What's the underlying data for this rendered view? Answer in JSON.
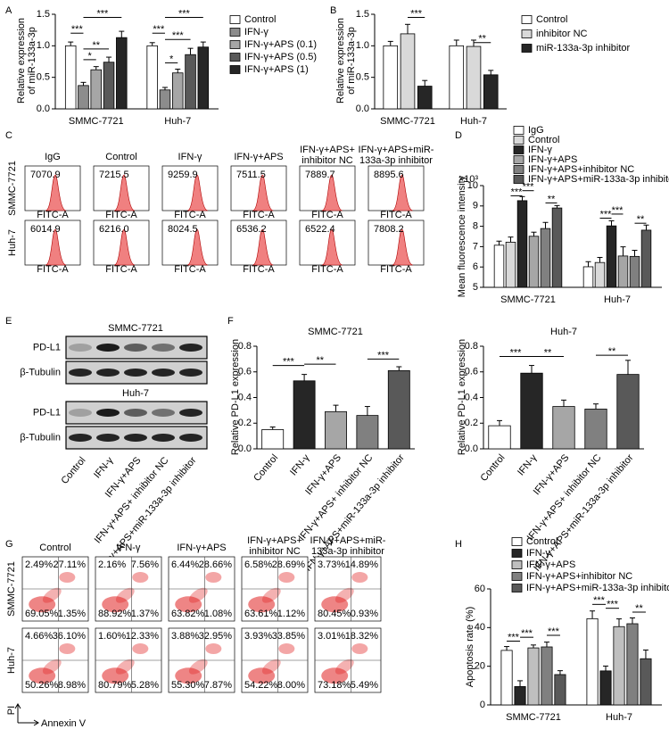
{
  "panels": [
    "A",
    "B",
    "C",
    "D",
    "E",
    "F",
    "G",
    "H"
  ],
  "chart_data": [
    {
      "type": "bar",
      "ylabel": [
        "Relative expression",
        "of miR-133a-3p"
      ],
      "categories": [
        "SMMC-7721",
        "Huh-7"
      ],
      "series": [
        {
          "name": "Control",
          "color": "#ffffff",
          "values": [
            1,
            1
          ],
          "errors": [
            0.06,
            0.05
          ]
        },
        {
          "name": "IFN-γ",
          "color": "#8c8c8c",
          "values": [
            0.37,
            0.3
          ],
          "errors": [
            0.05,
            0.04
          ]
        },
        {
          "name": "IFN-γ+APS (0.1)",
          "color": "#a6a6a6",
          "values": [
            0.62,
            0.57
          ],
          "errors": [
            0.05,
            0.06
          ]
        },
        {
          "name": "IFN-γ+APS (0.5)",
          "color": "#595959",
          "values": [
            0.74,
            0.86
          ],
          "errors": [
            0.08,
            0.1
          ]
        },
        {
          "name": "IFN-γ+APS (1)",
          "color": "#262626",
          "values": [
            1.13,
            0.98
          ],
          "errors": [
            0.1,
            0.08
          ]
        }
      ],
      "ylim": [
        0,
        1.5
      ],
      "yticks": [
        {
          "value": 0,
          "label": "0.0"
        },
        0.5,
        {
          "value": 1,
          "label": "1.0"
        },
        1.5
      ],
      "annotations": [
        "***",
        "*",
        "**",
        "***",
        "***",
        "*",
        "***",
        "***"
      ]
    },
    {
      "type": "bar",
      "ylabel": [
        "Relative expression",
        "of miR-133a-3p"
      ],
      "categories": [
        "SMMC-7721",
        "Huh-7"
      ],
      "series": [
        {
          "name": "Control",
          "color": "#ffffff",
          "values": [
            1,
            1
          ],
          "errors": [
            0.07,
            0.09
          ]
        },
        {
          "name": "inhibitor NC",
          "color": "#d9d9d9",
          "values": [
            1.19,
            0.99
          ],
          "errors": [
            0.15,
            0.1
          ]
        },
        {
          "name": "miR-133a-3p inhibitor",
          "color": "#262626",
          "values": [
            0.36,
            0.54
          ],
          "errors": [
            0.09,
            0.07
          ]
        }
      ],
      "ylim": [
        0,
        1.5
      ],
      "yticks": [
        {
          "value": 0,
          "label": "0.0"
        },
        0.5,
        {
          "value": 1,
          "label": "1.0"
        },
        1.5
      ],
      "annotations": [
        "***",
        "**"
      ]
    },
    {
      "type": "bar",
      "ylabel": "Mean fluorescence intensity",
      "yscale_label": "×10³",
      "categories": [
        "SMMC-7721",
        "Huh-7"
      ],
      "series": [
        {
          "name": "IgG",
          "color": "#ffffff",
          "values": [
            7.07,
            6.01
          ],
          "errors": [
            0.2,
            0.25
          ]
        },
        {
          "name": "Control",
          "color": "#d9d9d9",
          "values": [
            7.22,
            6.22
          ],
          "errors": [
            0.25,
            0.25
          ]
        },
        {
          "name": "IFN-γ",
          "color": "#262626",
          "values": [
            9.26,
            8.02
          ],
          "errors": [
            0.2,
            0.25
          ]
        },
        {
          "name": "IFN-γ+APS",
          "color": "#a6a6a6",
          "values": [
            7.51,
            6.54
          ],
          "errors": [
            0.2,
            0.45
          ]
        },
        {
          "name": "IFN-γ+APS+inhibitor NC",
          "color": "#808080",
          "values": [
            7.89,
            6.52
          ],
          "errors": [
            0.3,
            0.3
          ]
        },
        {
          "name": "IFN-γ+APS+miR-133a-3p inhibitor",
          "color": "#595959",
          "values": [
            8.9,
            7.81
          ],
          "errors": [
            0.12,
            0.25
          ]
        }
      ],
      "ylim": [
        5,
        10
      ],
      "yticks": [
        5,
        6,
        7,
        8,
        9,
        10
      ],
      "annotations": [
        "***",
        "***",
        "**",
        "***",
        "***",
        "**"
      ]
    },
    {
      "type": "bar",
      "title": "SMMC-7721",
      "ylabel": "Relative PD-L1 expression",
      "categories": [
        "Control",
        "IFN-γ",
        "IFN-γ+APS",
        "IFN-γ+APS+ inhibitor NC",
        "IFN-γ+APS+miR-133a-3p inhibitor"
      ],
      "values": [
        0.15,
        0.53,
        0.29,
        0.26,
        0.61
      ],
      "errors": [
        0.02,
        0.05,
        0.05,
        0.07,
        0.03
      ],
      "colors": [
        "#ffffff",
        "#262626",
        "#a6a6a6",
        "#808080",
        "#595959"
      ],
      "ylim": [
        0,
        0.8
      ],
      "yticks": [
        {
          "value": 0,
          "label": "0.0"
        },
        0.2,
        0.4,
        0.6,
        0.8
      ],
      "annotations": [
        "***",
        "**",
        "***"
      ]
    },
    {
      "type": "bar",
      "title": "Huh-7",
      "ylabel": "Relative PD-L1 expression",
      "categories": [
        "Control",
        "IFN-γ",
        "IFN-γ+APS",
        "IFN-γ+APS+ inhibitor NC",
        "IFN-γ+APS+miR-133a-3p inhibitor"
      ],
      "values": [
        0.18,
        0.59,
        0.33,
        0.31,
        0.58
      ],
      "errors": [
        0.04,
        0.06,
        0.05,
        0.04,
        0.11
      ],
      "colors": [
        "#ffffff",
        "#262626",
        "#a6a6a6",
        "#808080",
        "#595959"
      ],
      "ylim": [
        0,
        0.8
      ],
      "yticks": [
        {
          "value": 0,
          "label": "0.0"
        },
        0.2,
        0.4,
        0.6,
        0.8
      ],
      "annotations": [
        "***",
        "**",
        "**"
      ]
    },
    {
      "type": "bar",
      "ylabel": "Apoptosis rate (%)",
      "categories": [
        "SMMC-7721",
        "Huh-7"
      ],
      "series": [
        {
          "name": "Control",
          "color": "#ffffff",
          "values": [
            28.2,
            44.6
          ],
          "errors": [
            2,
            4
          ]
        },
        {
          "name": "IFN-γ",
          "color": "#262626",
          "values": [
            9.5,
            17.6
          ],
          "errors": [
            3,
            2.5
          ]
        },
        {
          "name": "IFN-γ+APS",
          "color": "#bfbfbf",
          "values": [
            29.5,
            40.5
          ],
          "errors": [
            1.5,
            4
          ]
        },
        {
          "name": "IFN-γ+APS+inhibitor NC",
          "color": "#808080",
          "values": [
            30,
            42
          ],
          "errors": [
            2.5,
            3
          ]
        },
        {
          "name": "IFN-γ+APS+miR-133a-3p inhibitor",
          "color": "#595959",
          "values": [
            15.7,
            23.9
          ],
          "errors": [
            2,
            4.5
          ]
        }
      ],
      "ylim": [
        0,
        60
      ],
      "yticks": [
        0,
        20,
        40,
        60
      ],
      "annotations": [
        "***",
        "***",
        "***",
        "***",
        "***",
        "**"
      ]
    }
  ],
  "flow_histograms": {
    "columns": [
      [
        "IgG"
      ],
      [
        "Control"
      ],
      [
        "IFN-γ"
      ],
      [
        "IFN-γ+APS"
      ],
      [
        "IFN-γ+APS+",
        "inhibitor NC"
      ],
      [
        "IFN-γ+APS+miR-",
        "133a-3p inhibitor"
      ]
    ],
    "rows": [
      "SMMC-7721",
      "Huh-7"
    ],
    "values": [
      [
        "7070.9",
        "7215.5",
        "9259.9",
        "7511.5",
        "7889.7",
        "8895.6"
      ],
      [
        "6014.9",
        "6216.0",
        "8024.5",
        "6536.2",
        "6522.4",
        "7808.2"
      ]
    ],
    "axis_label": "FITC-A"
  },
  "western_blot": {
    "blocks": [
      {
        "title": "SMMC-7721",
        "bands": [
          "PD-L1",
          "β-Tubulin"
        ]
      },
      {
        "title": "Huh-7",
        "bands": [
          "PD-L1",
          "β-Tubulin"
        ]
      }
    ],
    "lanes": [
      "Control",
      "IFN-γ",
      "IFN-γ+APS",
      "IFN-γ+APS+ inhibitor NC",
      "IFN-γ+APS+miR-133a-3p inhibitor"
    ]
  },
  "flow_scatter": {
    "columns": [
      [
        "Control"
      ],
      [
        "IFN-γ"
      ],
      [
        "IFN-γ+APS"
      ],
      [
        "IFN-γ+APS+",
        "inhibitor NC"
      ],
      [
        "IFN-γ+APS+miR-",
        "133a-3p inhibitor"
      ]
    ],
    "rows": [
      "SMMC-7721",
      "Huh-7"
    ],
    "quadrants": [
      [
        [
          "2.49%",
          "27.11%",
          "69.05%",
          "1.35%"
        ],
        [
          "2.16%",
          "7.56%",
          "88.92%",
          "1.37%"
        ],
        [
          "6.44%",
          "28.66%",
          "63.82%",
          "1.08%"
        ],
        [
          "6.58%",
          "28.69%",
          "63.61%",
          "1.12%"
        ],
        [
          "3.73%",
          "14.89%",
          "80.45%",
          "0.93%"
        ]
      ],
      [
        [
          "4.66%",
          "36.10%",
          "50.26%",
          "8.98%"
        ],
        [
          "1.60%",
          "12.33%",
          "80.79%",
          "5.28%"
        ],
        [
          "3.88%",
          "32.95%",
          "55.30%",
          "7.87%"
        ],
        [
          "3.93%",
          "33.85%",
          "54.22%",
          "8.00%"
        ],
        [
          "3.01%",
          "18.32%",
          "73.18%",
          "5.49%"
        ]
      ]
    ],
    "y_label": "PI",
    "x_label": "Annexin V"
  }
}
